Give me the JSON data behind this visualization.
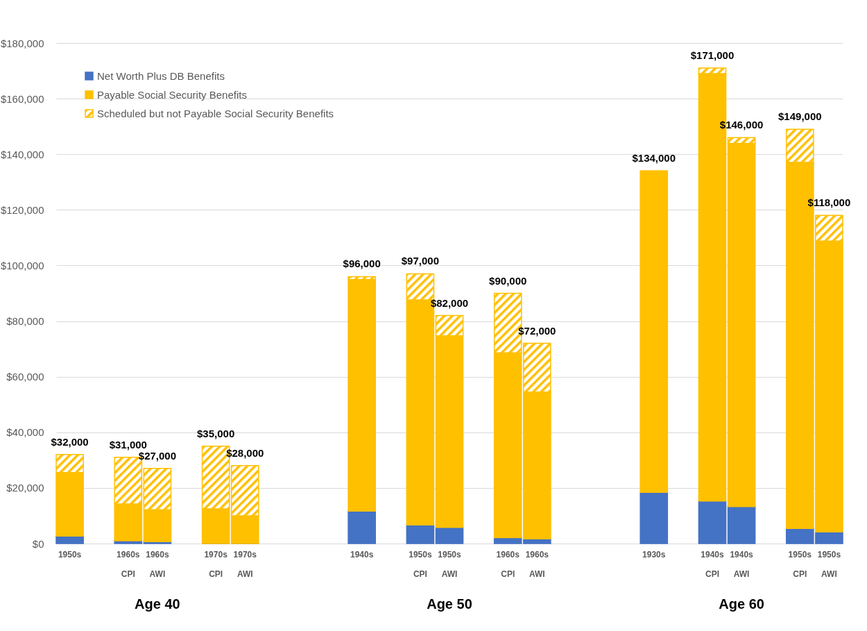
{
  "chart_data": {
    "type": "bar",
    "stacked": true,
    "categories": [
      "1950s",
      null,
      "1960s\nCPI",
      "1960s\nAWI",
      null,
      "1970s\nCPI",
      "1970s\nAWI",
      null,
      null,
      null,
      "1940s",
      null,
      "1950s\nCPI",
      "1950s\nAWI",
      null,
      "1960s\nCPI",
      "1960s\nAWI",
      null,
      null,
      null,
      "1930s",
      null,
      "1940s\nCPI",
      "1940s\nAWI",
      null,
      "1950s\nCPI",
      "1950s\nAWI"
    ],
    "series": [
      {
        "name": "Net Worth Plus DB Benefits",
        "color": "#4472c4",
        "values": [
          2700,
          null,
          1000,
          700,
          null,
          0,
          0,
          null,
          null,
          null,
          11700,
          null,
          6700,
          5800,
          null,
          2100,
          1700,
          null,
          null,
          null,
          18400,
          null,
          15300,
          13300,
          null,
          5400,
          4200
        ]
      },
      {
        "name": "Payable Social Security Benefits",
        "color": "#ffc000",
        "values": [
          22800,
          null,
          13200,
          11500,
          null,
          12500,
          10000,
          null,
          null,
          null,
          83200,
          null,
          80900,
          68900,
          null,
          66500,
          52800,
          null,
          null,
          null,
          115600,
          null,
          153700,
          130600,
          null,
          131700,
          104600
        ]
      },
      {
        "name": "Scheduled but not Payable Social Security Benefits",
        "color": "#ffc000",
        "values": [
          6500,
          null,
          16800,
          14800,
          null,
          22500,
          18000,
          null,
          null,
          null,
          1100,
          null,
          9400,
          7300,
          null,
          21400,
          17500,
          null,
          null,
          null,
          0,
          null,
          2000,
          2100,
          null,
          11900,
          9200
        ]
      }
    ],
    "totals": [
      "$32,000",
      null,
      "$31,000",
      "$27,000",
      null,
      "$35,000",
      "$28,000",
      null,
      null,
      null,
      "$96,000",
      null,
      "$97,000",
      "$82,000",
      null,
      "$90,000",
      "$72,000",
      null,
      null,
      null,
      "$134,000",
      null,
      "$171,000",
      "$146,000",
      null,
      "$149,000",
      "$118,000"
    ],
    "annotations": [
      "Age 40",
      "Age 50",
      "Age 60"
    ],
    "ylim": [
      0,
      180000
    ],
    "yticks": [
      {
        "value": 0,
        "label": "$0"
      },
      {
        "value": 20000,
        "label": "$20,000"
      },
      {
        "value": 40000,
        "label": "$40,000"
      },
      {
        "value": 60000,
        "label": "$60,000"
      },
      {
        "value": 80000,
        "label": "$80,000"
      },
      {
        "value": 100000,
        "label": "$100,000"
      },
      {
        "value": 120000,
        "label": "$120,000"
      },
      {
        "value": 140000,
        "label": "$140,000"
      },
      {
        "value": 160000,
        "label": "$160,000"
      },
      {
        "value": 180000,
        "label": "$180,000"
      }
    ],
    "grid": "y",
    "legend": "top left"
  }
}
